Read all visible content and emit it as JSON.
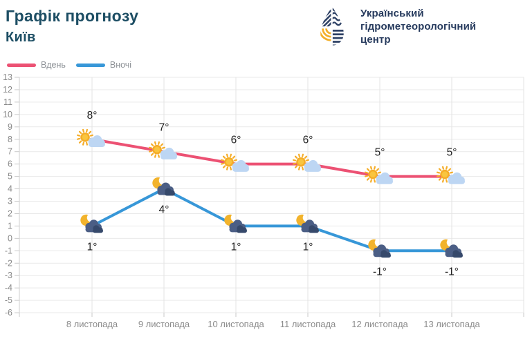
{
  "header": {
    "logo_lines": [
      "Український",
      "гідрометеорологічний",
      "центр"
    ],
    "logo_colors": {
      "navy": "#2e4165",
      "yellow": "#f3b02a",
      "text": "#263a5d"
    }
  },
  "chart_data": {
    "type": "line",
    "title": "Графік прогнозу",
    "subtitle": "Київ",
    "categories": [
      "8 листопада",
      "9 листопада",
      "10 листопада",
      "11 листопада",
      "12 листопада",
      "13 листопада"
    ],
    "series": [
      {
        "name": "Вдень",
        "color": "#ec5173",
        "values": [
          8,
          7,
          6,
          6,
          5,
          5
        ],
        "unit": "°",
        "label_position": "above",
        "icons": [
          "sun-behind-cloud",
          "cloud-with-sun",
          "cloud-with-sun",
          "cloud-with-sun",
          "sun-with-cloud",
          "sun-with-cloud"
        ]
      },
      {
        "name": "Вночі",
        "color": "#3797d8",
        "values": [
          1,
          4,
          1,
          1,
          -1,
          -1
        ],
        "unit": "°",
        "label_position": "below",
        "icons": [
          "moon-with-cloud",
          "moon-with-cloud",
          "moon-with-cloud",
          "moon-with-cloud",
          "moon-with-cloud",
          "moon-with-cloud"
        ]
      }
    ],
    "ylim": [
      -6,
      13
    ],
    "ytick_step": 1,
    "grid": true,
    "legend_position": "top-left",
    "colors": {
      "grid_h": "#e9e9e9",
      "grid_v": "#e3e3e3",
      "axis": "#cfcfcf",
      "tick": "#c9c9c9",
      "axis_label": "#8a8a8a",
      "point_label": "#1e1e1e",
      "sun": "#f5ad28",
      "sun_inner": "#f9c53f",
      "day_cloud": "#bdd6f3",
      "moon": "#f2b32c",
      "night_cloud": "#4b5e85",
      "night_cloud_dark": "#36496b"
    }
  }
}
